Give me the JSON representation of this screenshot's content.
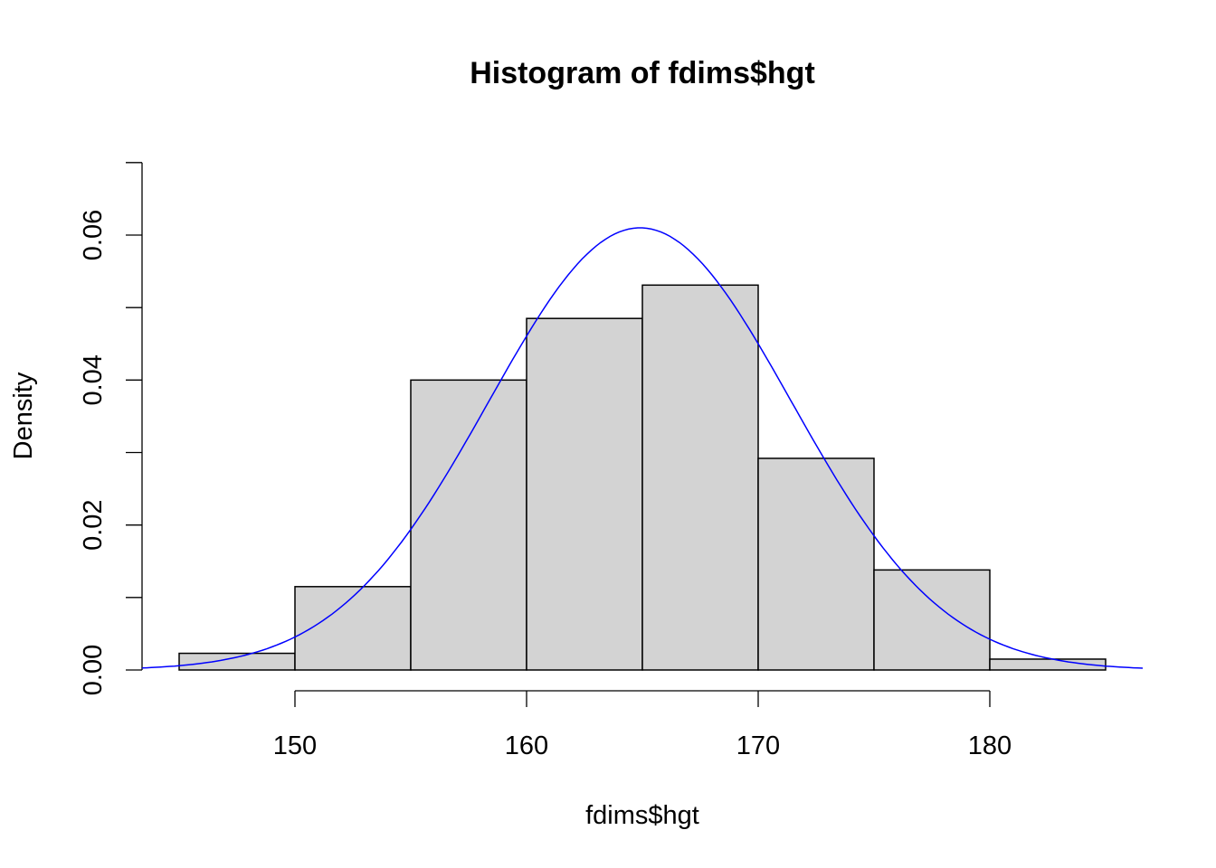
{
  "chart_data": {
    "type": "bar",
    "title": "Histogram of fdims$hgt",
    "xlabel": "fdims$hgt",
    "ylabel": "Density",
    "bins": [
      {
        "from": 145,
        "to": 150,
        "density": 0.0023
      },
      {
        "from": 150,
        "to": 155,
        "density": 0.0115
      },
      {
        "from": 155,
        "to": 160,
        "density": 0.04
      },
      {
        "from": 160,
        "to": 165,
        "density": 0.0485
      },
      {
        "from": 165,
        "to": 170,
        "density": 0.0531
      },
      {
        "from": 170,
        "to": 175,
        "density": 0.0292
      },
      {
        "from": 175,
        "to": 180,
        "density": 0.0138
      },
      {
        "from": 180,
        "to": 185,
        "density": 0.0015
      }
    ],
    "xticks": [
      "150",
      "160",
      "170",
      "180"
    ],
    "xtick_values": [
      150,
      160,
      170,
      180
    ],
    "yticks": [
      "0.00",
      "0.02",
      "0.04",
      "0.06"
    ],
    "ytick_values": [
      0,
      0.02,
      0.04,
      0.06
    ],
    "yminor_ticks": [
      0.01,
      0.03,
      0.05,
      0.07
    ],
    "ylim": [
      0,
      0.07
    ],
    "xlim": [
      143.4,
      186.6
    ],
    "bar_color": "#D3D3D3",
    "curve": {
      "type": "normal density",
      "mean": 164.9,
      "sd": 6.54,
      "color": "#0000FF"
    },
    "grid": false
  }
}
